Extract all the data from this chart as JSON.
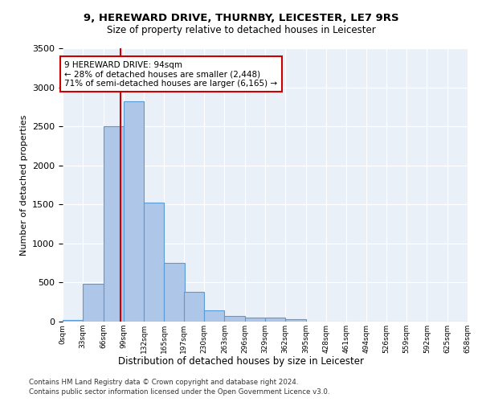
{
  "title_line1": "9, HEREWARD DRIVE, THURNBY, LEICESTER, LE7 9RS",
  "title_line2": "Size of property relative to detached houses in Leicester",
  "xlabel": "Distribution of detached houses by size in Leicester",
  "ylabel": "Number of detached properties",
  "bar_values": [
    25,
    480,
    2500,
    2820,
    1520,
    750,
    385,
    140,
    70,
    55,
    55,
    30,
    5,
    0,
    0,
    0,
    0,
    0,
    0,
    0
  ],
  "bar_left_edges": [
    0,
    33,
    66,
    99,
    132,
    165,
    197,
    230,
    263,
    296,
    329,
    362,
    395,
    428,
    461,
    494,
    526,
    559,
    592,
    625
  ],
  "tick_labels": [
    "0sqm",
    "33sqm",
    "66sqm",
    "99sqm",
    "132sqm",
    "165sqm",
    "197sqm",
    "230sqm",
    "263sqm",
    "296sqm",
    "329sqm",
    "362sqm",
    "395sqm",
    "428sqm",
    "461sqm",
    "494sqm",
    "526sqm",
    "559sqm",
    "592sqm",
    "625sqm",
    "658sqm"
  ],
  "bar_color": "#aec6e8",
  "bar_edgecolor": "#5b9bd5",
  "vline_x": 94.0,
  "annotation_text": "9 HEREWARD DRIVE: 94sqm\n← 28% of detached houses are smaller (2,448)\n71% of semi-detached houses are larger (6,165) →",
  "annotation_box_edgecolor": "#cc0000",
  "vline_color": "#cc0000",
  "ylim": [
    0,
    3500
  ],
  "yticks": [
    0,
    500,
    1000,
    1500,
    2000,
    2500,
    3000,
    3500
  ],
  "footer_line1": "Contains HM Land Registry data © Crown copyright and database right 2024.",
  "footer_line2": "Contains public sector information licensed under the Open Government Licence v3.0.",
  "plot_bg_color": "#eaf0f8",
  "bin_width": 33
}
